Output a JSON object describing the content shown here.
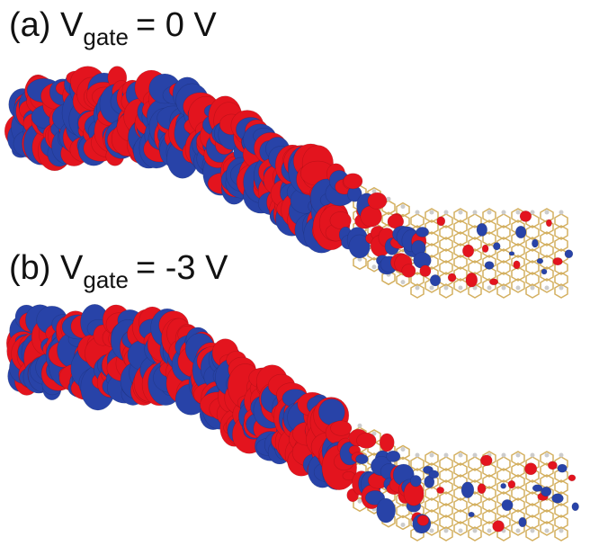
{
  "panels": [
    {
      "prefix": "(a) V",
      "subscript": "gate",
      "suffix": "= 0 V"
    },
    {
      "prefix": "(b) V",
      "subscript": "gate",
      "suffix": "= -3 V"
    }
  ]
}
